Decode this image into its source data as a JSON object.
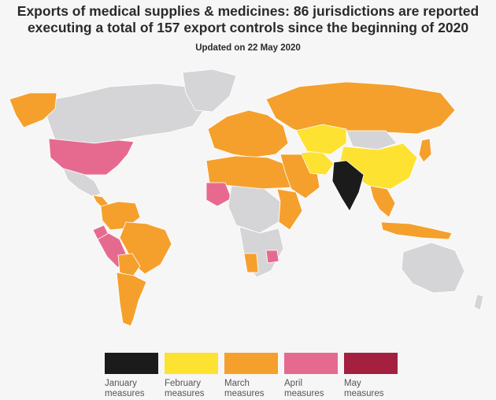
{
  "header": {
    "title_line1": "Exports of medical supplies & medicines: 86 jurisdictions are reported",
    "title_line2": "executing a total of 157 export controls since the beginning of 2020",
    "subtitle": "Updated on 22 May 2020"
  },
  "colors": {
    "january": "#1b1b1b",
    "february": "#fde231",
    "march": "#f5a02c",
    "april": "#e66a8f",
    "may": "#a3203f",
    "no_measures": "#d5d5d7"
  },
  "legend": [
    {
      "key": "january",
      "line1": "January",
      "line2": "measures"
    },
    {
      "key": "february",
      "line1": "February",
      "line2": "measures"
    },
    {
      "key": "march",
      "line1": "March",
      "line2": "measures"
    },
    {
      "key": "april",
      "line1": "April",
      "line2": "measures"
    },
    {
      "key": "may",
      "line1": "May",
      "line2": "measures"
    }
  ],
  "regions": [
    {
      "name": "alaska",
      "status": "march"
    },
    {
      "name": "canada",
      "status": "none"
    },
    {
      "name": "greenland",
      "status": "none"
    },
    {
      "name": "usa",
      "status": "april"
    },
    {
      "name": "mexico",
      "status": "none"
    },
    {
      "name": "central-america",
      "status": "march"
    },
    {
      "name": "colombia-venezuela",
      "status": "march"
    },
    {
      "name": "ecuador",
      "status": "april"
    },
    {
      "name": "peru",
      "status": "april"
    },
    {
      "name": "brazil",
      "status": "march"
    },
    {
      "name": "bolivia",
      "status": "march"
    },
    {
      "name": "chile-argentina",
      "status": "march"
    },
    {
      "name": "europe",
      "status": "march"
    },
    {
      "name": "russia",
      "status": "march"
    },
    {
      "name": "north-africa",
      "status": "march"
    },
    {
      "name": "west-africa",
      "status": "april"
    },
    {
      "name": "central-africa",
      "status": "none"
    },
    {
      "name": "east-africa",
      "status": "march"
    },
    {
      "name": "southern-africa",
      "status": "none"
    },
    {
      "name": "namibia",
      "status": "march"
    },
    {
      "name": "zimbabwe",
      "status": "april"
    },
    {
      "name": "middle-east",
      "status": "march"
    },
    {
      "name": "iran",
      "status": "february"
    },
    {
      "name": "central-asia",
      "status": "february"
    },
    {
      "name": "china",
      "status": "february"
    },
    {
      "name": "mongolia",
      "status": "none"
    },
    {
      "name": "india",
      "status": "january"
    },
    {
      "name": "southeast-asia",
      "status": "march"
    },
    {
      "name": "indonesia",
      "status": "march"
    },
    {
      "name": "japan",
      "status": "march"
    },
    {
      "name": "australia",
      "status": "none"
    },
    {
      "name": "new-zealand",
      "status": "none"
    }
  ]
}
